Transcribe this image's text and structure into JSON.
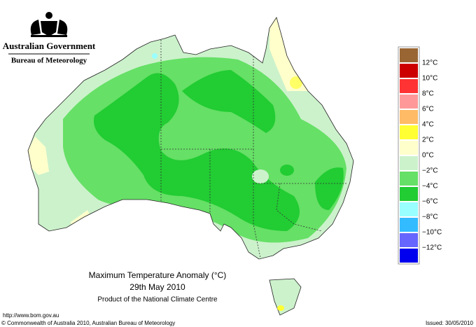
{
  "header": {
    "government": "Australian Government",
    "agency": "Bureau of Meteorology"
  },
  "legend": {
    "swatches": [
      "#996633",
      "#cc0000",
      "#ff3333",
      "#ff9999",
      "#ffbb66",
      "#ffff33",
      "#ffffcc",
      "#ccf2cc",
      "#66e066",
      "#22cc33",
      "#99ffff",
      "#33bbff",
      "#6666ff",
      "#0000ee"
    ],
    "labels": [
      "12°C",
      "10°C",
      "8°C",
      "6°C",
      "4°C",
      "2°C",
      "0°C",
      "−2°C",
      "−4°C",
      "−6°C",
      "−8°C",
      "−10°C",
      "−12°C"
    ]
  },
  "caption": {
    "title": "Maximum Temperature Anomaly (°C)",
    "date": "29th May 2010",
    "product": "Product of the National Climate Centre"
  },
  "footer": {
    "url": "http://www.bom.gov.au",
    "copyright": "© Commonwealth of Australia 2010, Australian Bureau of Meteorology",
    "issued": "Issued: 30/05/2010"
  }
}
